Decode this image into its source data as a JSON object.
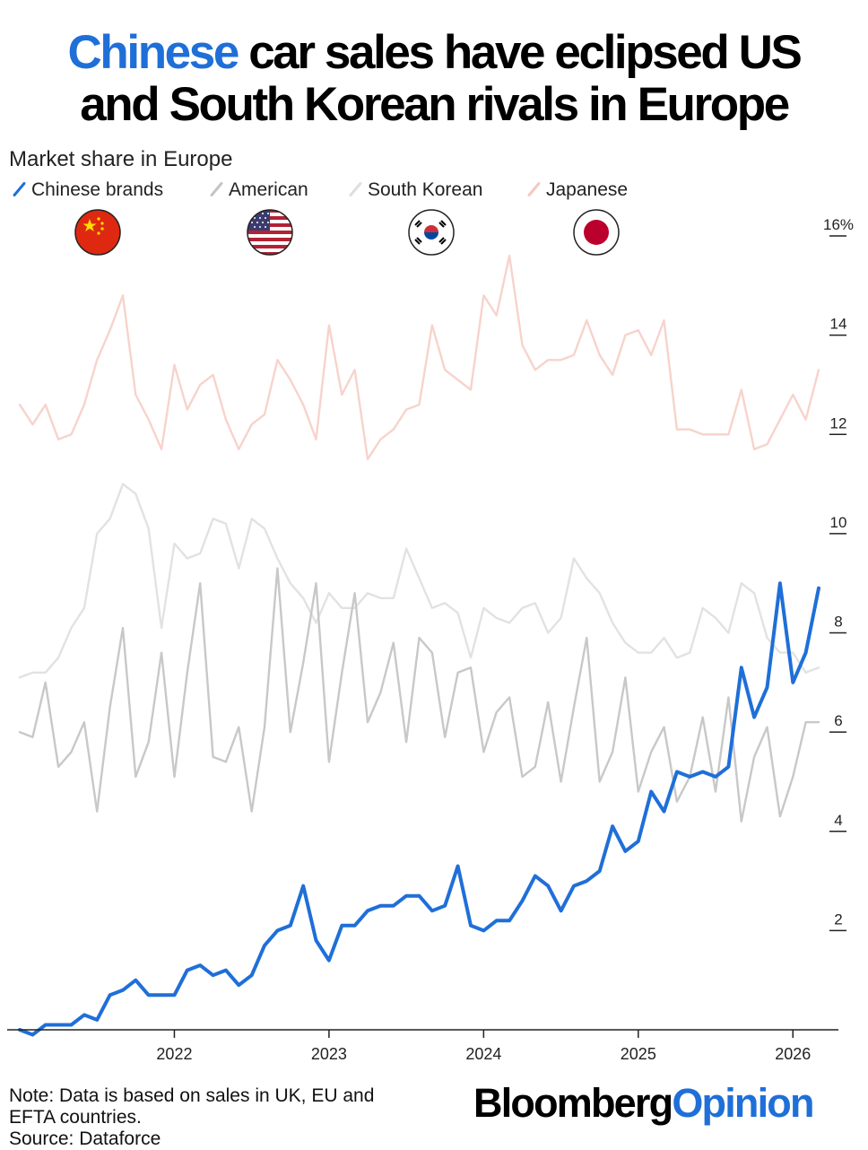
{
  "title": {
    "highlight": "Chinese",
    "line1_rest": " car sales have eclipsed US",
    "line2": "and South Korean rivals in Europe"
  },
  "subtitle": "Market share in Europe",
  "legend": [
    {
      "label": "Chinese brands",
      "color": "#1f6fd8",
      "icon": "china-flag-icon"
    },
    {
      "label": "American",
      "color": "#c8c8c8",
      "icon": "us-flag-icon"
    },
    {
      "label": "South Korean",
      "color": "#e2e2e2",
      "icon": "south-korea-flag-icon"
    },
    {
      "label": "Japanese",
      "color": "#f7d3cc",
      "icon": "japan-flag-icon"
    }
  ],
  "footer": {
    "note_line1": "Note: Data is based on sales in UK, EU and",
    "note_line2": "EFTA countries.",
    "source": "Source: Dataforce",
    "brand_part1": "Bloomberg",
    "brand_part2": "Opinion"
  },
  "chart_data": {
    "type": "line",
    "x_start": "2021-01",
    "x_ticks": [
      "2022",
      "2023",
      "2024",
      "2025",
      "2026"
    ],
    "y_ticks": [
      "2",
      "4",
      "6",
      "8",
      "10",
      "12",
      "14",
      "16%"
    ],
    "ylim": [
      0,
      16
    ],
    "grid": false,
    "legend_position": "top",
    "series": [
      {
        "name": "Japanese",
        "color": "#f7d3cc",
        "values": [
          12.6,
          12.2,
          12.6,
          11.9,
          12.0,
          12.6,
          13.5,
          14.1,
          14.8,
          12.8,
          12.3,
          11.7,
          13.4,
          12.5,
          13.0,
          13.2,
          12.3,
          11.7,
          12.2,
          12.4,
          13.5,
          13.1,
          12.6,
          11.9,
          14.2,
          12.8,
          13.3,
          11.5,
          11.9,
          12.1,
          12.5,
          12.6,
          14.2,
          13.3,
          13.1,
          12.9,
          14.8,
          14.4,
          15.6,
          13.8,
          13.3,
          13.5,
          13.5,
          13.6,
          14.3,
          13.6,
          13.2,
          14.0,
          14.1,
          13.6,
          14.3,
          12.1,
          12.1,
          12.0,
          12.0,
          12.0,
          12.9,
          11.7,
          11.8,
          12.3,
          12.8,
          12.3,
          13.3
        ]
      },
      {
        "name": "South Korean",
        "color": "#e2e2e2",
        "values": [
          7.1,
          7.2,
          7.2,
          7.5,
          8.1,
          8.5,
          10.0,
          10.3,
          11.0,
          10.8,
          10.1,
          8.1,
          9.8,
          9.5,
          9.6,
          10.3,
          10.2,
          9.3,
          10.3,
          10.1,
          9.5,
          9.0,
          8.7,
          8.2,
          8.8,
          8.5,
          8.5,
          8.8,
          8.7,
          8.7,
          9.7,
          9.1,
          8.5,
          8.6,
          8.4,
          7.5,
          8.5,
          8.3,
          8.2,
          8.5,
          8.6,
          8.0,
          8.3,
          9.5,
          9.1,
          8.8,
          8.2,
          7.8,
          7.6,
          7.6,
          7.9,
          7.5,
          7.6,
          8.5,
          8.3,
          8.0,
          9.0,
          8.8,
          7.9,
          7.6,
          7.6,
          7.2,
          7.3
        ]
      },
      {
        "name": "American",
        "color": "#c8c8c8",
        "values": [
          6.0,
          5.9,
          7.0,
          5.3,
          5.6,
          6.2,
          4.4,
          6.5,
          8.1,
          5.1,
          5.8,
          7.6,
          5.1,
          7.2,
          9.0,
          5.5,
          5.4,
          6.1,
          4.4,
          6.1,
          9.3,
          6.0,
          7.4,
          9.0,
          5.4,
          7.2,
          8.8,
          6.2,
          6.8,
          7.8,
          5.8,
          7.9,
          7.6,
          5.9,
          7.2,
          7.3,
          5.6,
          6.4,
          6.7,
          5.1,
          5.3,
          6.6,
          5.0,
          6.5,
          7.9,
          5.0,
          5.6,
          7.1,
          4.8,
          5.6,
          6.1,
          4.6,
          5.1,
          6.3,
          4.8,
          6.7,
          4.2,
          5.5,
          6.1,
          4.3,
          5.1,
          6.2,
          6.2
        ]
      },
      {
        "name": "Chinese brands",
        "color": "#1f6fd8",
        "values": [
          0.0,
          -0.1,
          0.1,
          0.1,
          0.1,
          0.3,
          0.2,
          0.7,
          0.8,
          1.0,
          0.7,
          0.7,
          0.7,
          1.2,
          1.3,
          1.1,
          1.2,
          0.9,
          1.1,
          1.7,
          2.0,
          2.1,
          2.9,
          1.8,
          1.4,
          2.1,
          2.1,
          2.4,
          2.5,
          2.5,
          2.7,
          2.7,
          2.4,
          2.5,
          3.3,
          2.1,
          2.0,
          2.2,
          2.2,
          2.6,
          3.1,
          2.9,
          2.4,
          2.9,
          3.0,
          3.2,
          4.1,
          3.6,
          3.8,
          4.8,
          4.4,
          5.2,
          5.1,
          5.2,
          5.1,
          5.3,
          7.3,
          6.3,
          6.9,
          9.0,
          7.0,
          7.6,
          8.9
        ]
      }
    ]
  }
}
